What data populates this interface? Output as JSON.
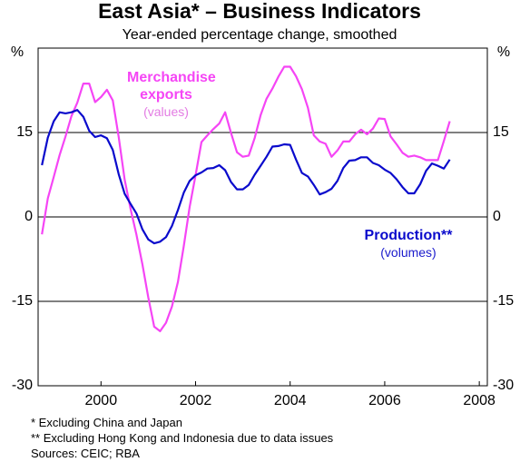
{
  "chart_data": {
    "type": "line",
    "title": "East Asia* – Business Indicators",
    "subtitle": "Year-ended percentage change, smoothed",
    "y_unit": "%",
    "x": [
      1999.25,
      1999.375,
      1999.5,
      1999.625,
      1999.75,
      1999.875,
      2000,
      2000.125,
      2000.25,
      2000.375,
      2000.5,
      2000.625,
      2000.75,
      2000.875,
      2001,
      2001.125,
      2001.25,
      2001.375,
      2001.5,
      2001.625,
      2001.75,
      2001.875,
      2002,
      2002.125,
      2002.25,
      2002.375,
      2002.5,
      2002.625,
      2002.75,
      2002.875,
      2003,
      2003.125,
      2003.25,
      2003.375,
      2003.5,
      2003.625,
      2003.75,
      2003.875,
      2004,
      2004.125,
      2004.25,
      2004.375,
      2004.5,
      2004.625,
      2004.75,
      2004.875,
      2005,
      2005.125,
      2005.25,
      2005.375,
      2005.5,
      2005.625,
      2005.75,
      2005.875,
      2006,
      2006.125,
      2006.25,
      2006.375,
      2006.5,
      2006.625,
      2006.75,
      2006.875,
      2007,
      2007.125,
      2007.25,
      2007.375,
      2007.5,
      2007.625,
      2007.75,
      2007.875
    ],
    "series": [
      {
        "name": "Merchandise exports",
        "note": "(values)",
        "color": "#f545f5",
        "note_color": "#e37be3",
        "values": [
          -3.1,
          3.3,
          7.1,
          11,
          14.3,
          17.9,
          20.3,
          23.7,
          23.7,
          20.4,
          21.3,
          22.6,
          20.7,
          14.2,
          6.6,
          1.4,
          -3.2,
          -8.4,
          -14.3,
          -19.5,
          -20.3,
          -18.8,
          -15.9,
          -11.6,
          -5.2,
          1.8,
          7.4,
          13.3,
          14.5,
          15.6,
          16.6,
          18.6,
          14.9,
          11.5,
          10.7,
          10.9,
          14,
          18.1,
          21,
          22.8,
          24.9,
          26.7,
          26.7,
          25,
          22.7,
          19.4,
          14.5,
          13.4,
          13,
          10.7,
          11.8,
          13.4,
          13.4,
          14.7,
          15.5,
          14.7,
          15.7,
          17.5,
          17.4,
          14.3,
          12.9,
          11.4,
          10.7,
          10.9,
          10.6,
          10.1,
          10.1,
          10.1,
          13.5,
          17
        ]
      },
      {
        "name": "Production**",
        "note": "(volumes)",
        "color": "#0a0acc",
        "note_color": "#1a1acc",
        "values": [
          9.2,
          14.1,
          17,
          18.6,
          18.4,
          18.6,
          19,
          17.8,
          15.3,
          14.2,
          14.5,
          14,
          11.9,
          7.6,
          4.1,
          2.3,
          0.6,
          -2.2,
          -4,
          -4.7,
          -4.4,
          -3.6,
          -1.6,
          1.2,
          4.3,
          6.4,
          7.4,
          7.9,
          8.6,
          8.7,
          9.2,
          8.3,
          6.2,
          4.9,
          4.9,
          5.7,
          7.5,
          9.1,
          10.7,
          12.5,
          12.6,
          12.9,
          12.8,
          10.2,
          7.8,
          7.2,
          5.7,
          4,
          4.4,
          5,
          6.4,
          8.7,
          10,
          10.1,
          10.6,
          10.6,
          9.6,
          9.2,
          8.4,
          7.8,
          6.7,
          5.3,
          4.2,
          4.2,
          5.8,
          8.2,
          9.5,
          9.1,
          8.6,
          10.2
        ]
      }
    ],
    "xlim": [
      1999.17,
      2008.67
    ],
    "xticks": [
      {
        "value": 2000.5,
        "label": "2000"
      },
      {
        "value": 2002.5,
        "label": "2002"
      },
      {
        "value": 2004.5,
        "label": "2004"
      },
      {
        "value": 2006.5,
        "label": "2006"
      },
      {
        "value": 2008.5,
        "label": "2008"
      }
    ],
    "ylim": [
      -30,
      30
    ],
    "yticks": [
      -30,
      -15,
      0,
      15
    ],
    "grid": true,
    "footnotes": [
      "*   Excluding China and Japan",
      "** Excluding Hong Kong and Indonesia due to data issues",
      "Sources: CEIC; RBA"
    ]
  }
}
